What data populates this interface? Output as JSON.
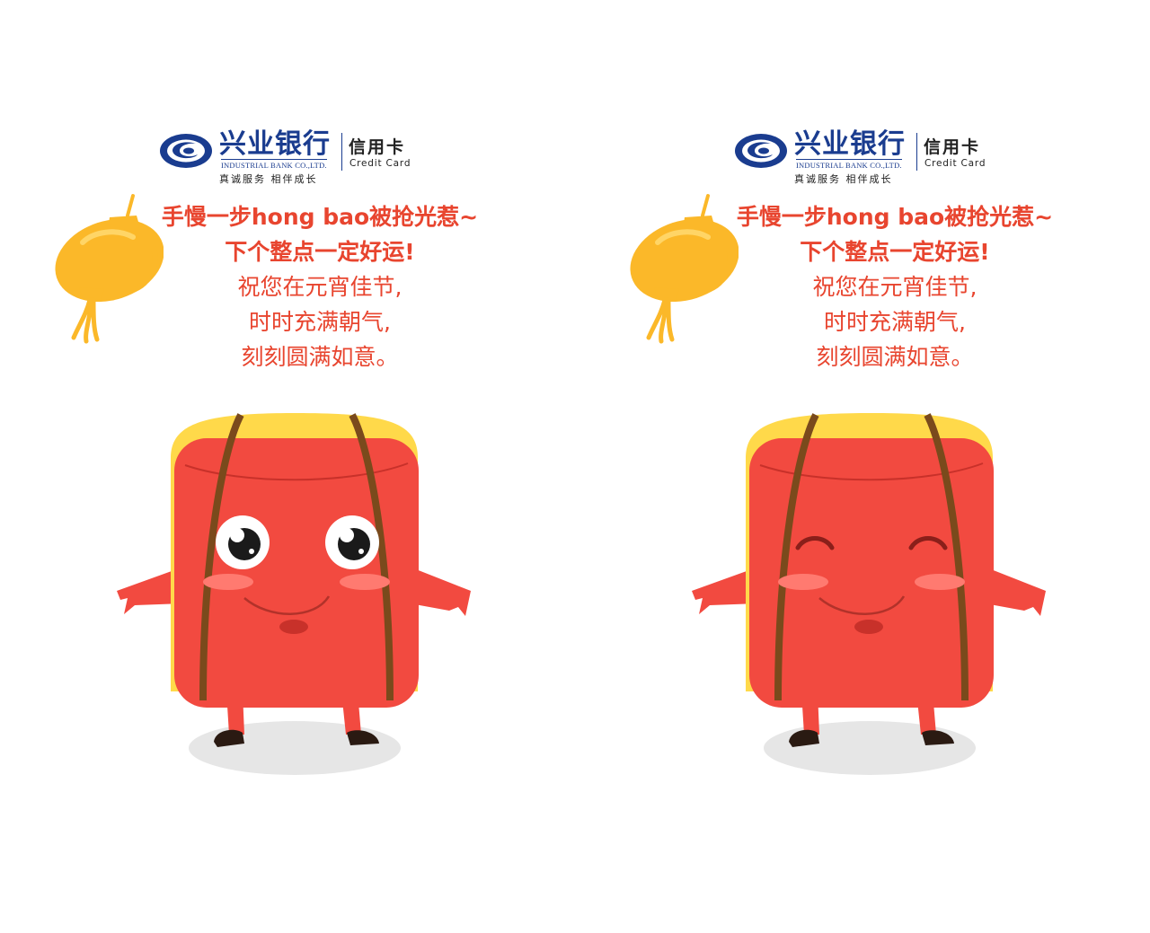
{
  "brand": {
    "name_cn": "兴业银行",
    "name_en": "INDUSTRIAL BANK CO.,LTD.",
    "product_cn": "信用卡",
    "product_en": "Credit Card",
    "slogan": "真诚服务  相伴成长",
    "color": "#1a3c8f"
  },
  "message": {
    "line1": "手慢一步hong bao被抢光惹~",
    "line2": "下个整点一定好运!",
    "line3": "祝您在元宵佳节,",
    "line4": "时时充满朝气,",
    "line5": "刻刻圆满如意。",
    "color": "#e8452f"
  },
  "panels": [
    {
      "mascot": "red-envelope-mascot-surprised-eyes"
    },
    {
      "mascot": "red-envelope-mascot-smiling-eyes"
    }
  ],
  "colors": {
    "envelope": "#f24a40",
    "envelope_flap": "#ffd94a",
    "strap": "#7a4a1c",
    "lantern": "#fbb829",
    "shadow": "#e6e6e6"
  }
}
